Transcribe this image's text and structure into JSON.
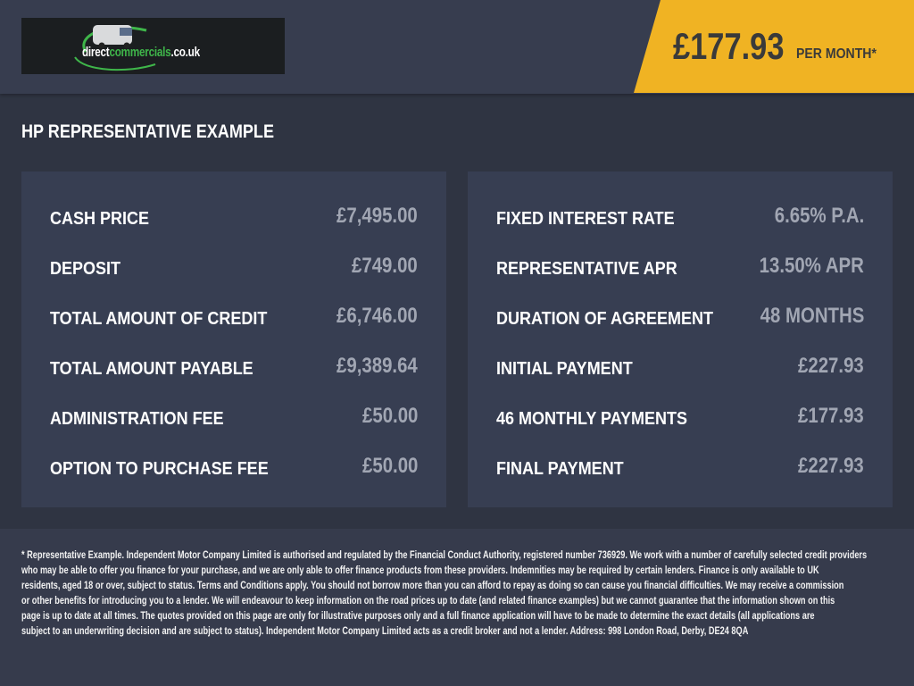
{
  "header": {
    "logo": {
      "text_dark": "direct",
      "text_green": "commercials",
      "text_suffix": ".co.uk"
    },
    "price": "£177.93",
    "per_month": "PER MONTH*",
    "accent_color": "#f0b323"
  },
  "section_title": "HP REPRESENTATIVE EXAMPLE",
  "left_panel": [
    {
      "label": "CASH PRICE",
      "value": "£7,495.00"
    },
    {
      "label": "DEPOSIT",
      "value": "£749.00"
    },
    {
      "label": "TOTAL AMOUNT OF CREDIT",
      "value": "£6,746.00"
    },
    {
      "label": "TOTAL AMOUNT PAYABLE",
      "value": "£9,389.64"
    },
    {
      "label": "ADMINISTRATION FEE",
      "value": "£50.00"
    },
    {
      "label": "OPTION TO PURCHASE FEE",
      "value": "£50.00"
    }
  ],
  "right_panel": [
    {
      "label": "FIXED INTEREST RATE",
      "value": "6.65% P.A."
    },
    {
      "label": "REPRESENTATIVE APR",
      "value": "13.50% APR"
    },
    {
      "label": "DURATION OF AGREEMENT",
      "value": "48 MONTHS"
    },
    {
      "label": "INITIAL PAYMENT",
      "value": "£227.93"
    },
    {
      "label": "46 MONTHLY PAYMENTS",
      "value": "£177.93"
    },
    {
      "label": "FINAL PAYMENT",
      "value": "£227.93"
    }
  ],
  "disclaimer": [
    "* Representative Example. Independent Motor Company Limited is authorised and regulated by the Financial Conduct Authority, registered number 736929. We work with a number of carefully selected credit providers",
    "who may be able to offer you finance for your purchase, and we are only able to offer finance products from these providers. Indemnities may be required by certain lenders. Finance is only available to UK",
    "residents, aged 18 or over, subject to status. Terms and Conditions apply. You should not borrow more than you can afford to repay as doing so can cause you financial difficulties. We may receive a commission",
    "or other benefits for introducing you to a lender. We will endeavour to keep information on the road prices up to date (and related finance examples) but we cannot guarantee that the information shown on this",
    "page is up to date at all times. The quotes provided on this page are only for illustrative purposes only and a full finance application will have to be made to determine the exact details (all applications are",
    "subject to an underwriting decision and are subject to status). Independent Motor Company Limited acts as a credit broker and not a lender. Address: 998 London Road, Derby, DE24 8QA"
  ]
}
